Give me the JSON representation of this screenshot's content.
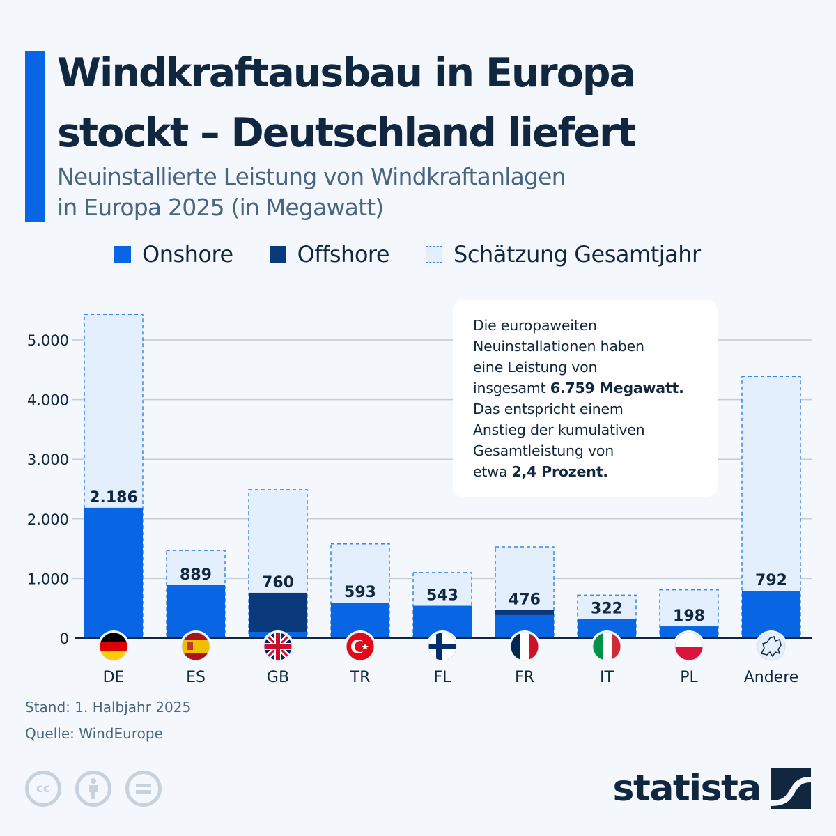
{
  "header": {
    "title_line1": "Windkraftausbau in Europa",
    "title_line2": "stockt – Deutschland liefert",
    "subtitle_line1": "Neuinstallierte Leistung von Windkraftanlagen",
    "subtitle_line2": "in Europa 2025 (in Megawatt)"
  },
  "colors": {
    "onshore": "#0866e4",
    "offshore": "#0b3a7c",
    "estimate_fill": "#e3effd",
    "estimate_border": "#3d86e8",
    "text_dark": "#10273f",
    "grid": "#c4ccd6",
    "background": "#f4f7fb"
  },
  "legend": [
    {
      "key": "onshore",
      "label": "Onshore"
    },
    {
      "key": "offshore",
      "label": "Offshore"
    },
    {
      "key": "estimate",
      "label": "Schätzung Gesamtjahr"
    }
  ],
  "note": {
    "line1": "Die europaweiten",
    "line2": "Neuinstallationen haben",
    "line3": "eine Leistung von",
    "line4_prefix": "insgesamt ",
    "line4_bold": "6.759 Megawatt.",
    "line5": "Das entspricht einem",
    "line6": "Anstieg der kumulativen",
    "line7": "Gesamtleistung von",
    "line8_prefix": "etwa ",
    "line8_bold": "2,4 Prozent."
  },
  "footer": {
    "status": "Stand: 1. Halbjahr 2025",
    "source": "Quelle: WindEurope",
    "license_icons": [
      "cc-icon",
      "attribution-icon",
      "no-derivatives-icon"
    ],
    "brand": "statista"
  },
  "chart_data": {
    "type": "bar",
    "stacked": true,
    "title": "Windkraftausbau in Europa stockt – Deutschland liefert",
    "subtitle": "Neuinstallierte Leistung von Windkraftanlagen in Europa 2025 (in Megawatt)",
    "xlabel": "",
    "ylabel": "",
    "ylim": [
      0,
      5500
    ],
    "yticks": [
      0,
      1000,
      2000,
      3000,
      4000,
      5000
    ],
    "ytick_labels": [
      "0",
      "1.000",
      "2.000",
      "3.000",
      "4.000",
      "5.000"
    ],
    "grid": true,
    "legend_position": "top",
    "categories": [
      "DE",
      "ES",
      "GB",
      "TR",
      "FL",
      "FR",
      "IT",
      "PL",
      "Andere"
    ],
    "category_icons": [
      "flag-germany",
      "flag-spain",
      "flag-uk",
      "flag-turkey",
      "flag-finland",
      "flag-france",
      "flag-italy",
      "flag-poland",
      "europe-map"
    ],
    "series": [
      {
        "name": "Onshore",
        "values": [
          2186,
          889,
          105,
          593,
          543,
          386,
          322,
          198,
          792
        ]
      },
      {
        "name": "Offshore",
        "values": [
          0,
          0,
          655,
          0,
          0,
          90,
          0,
          0,
          0
        ]
      },
      {
        "name": "Schätzung Gesamtjahr",
        "values": [
          5430,
          1470,
          2490,
          1580,
          1100,
          1530,
          720,
          810,
          4390
        ]
      }
    ],
    "data_labels": [
      "2.186",
      "889",
      "760",
      "593",
      "543",
      "476",
      "322",
      "198",
      "792"
    ]
  }
}
